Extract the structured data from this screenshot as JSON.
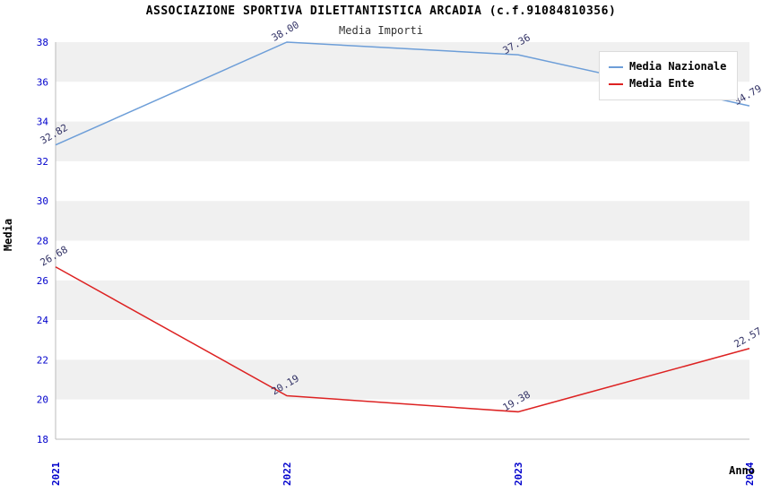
{
  "title": "ASSOCIAZIONE SPORTIVA DILETTANTISTICA ARCADIA (c.f.91084810356)",
  "subtitle": "Media Importi",
  "chart_data": {
    "type": "line",
    "categories": [
      "2021",
      "2022",
      "2023",
      "2024"
    ],
    "series": [
      {
        "name": "Media Nazionale",
        "color": "#6d9ed8",
        "values": [
          32.82,
          38.0,
          37.36,
          34.79
        ]
      },
      {
        "name": "Media Ente",
        "color": "#dd2222",
        "values": [
          26.68,
          20.19,
          19.38,
          22.57
        ]
      }
    ],
    "xlabel": "Anno",
    "ylabel": "Media",
    "ylim": [
      18,
      38
    ],
    "ytick_step": 2,
    "grid": "horizontal-bands",
    "legend_position": "top-right",
    "colors": {
      "tick_label": "#0000cc",
      "data_label": "#333366",
      "band_gray": "#f0f0f0",
      "band_white": "#ffffff",
      "axis_line": "#bbbbbb"
    }
  }
}
